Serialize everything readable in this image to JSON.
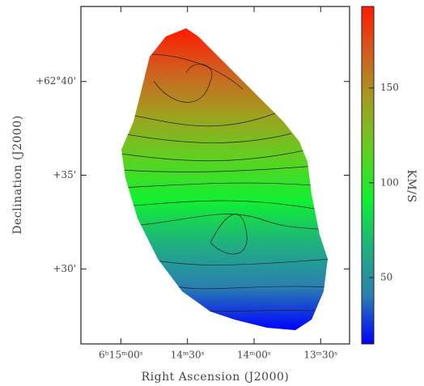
{
  "chart_data": {
    "type": "velocity-map",
    "xlabel": "Right Ascension (J2000)",
    "ylabel": "Declination (J2000)",
    "xlim": [
      918,
      797
    ],
    "xticks": [
      {
        "value": 900,
        "label": "6ʰ15ᵐ00ˢ"
      },
      {
        "value": 870,
        "label": "14ᵐ30ˢ"
      },
      {
        "value": 840,
        "label": "14ᵐ00ˢ"
      },
      {
        "value": 810,
        "label": "13ᵐ30ˢ"
      }
    ],
    "ylim": [
      26,
      44
    ],
    "yticks": [
      {
        "value": 40,
        "label": "+62°40'"
      },
      {
        "value": 35,
        "label": "+35'"
      },
      {
        "value": 30,
        "label": "+30'"
      }
    ],
    "colorbar": {
      "label": "KM/S",
      "lim": [
        15,
        193
      ],
      "ticks": [
        50,
        100,
        150
      ],
      "colors": [
        "#0000ff",
        "#2a7fb0",
        "#20b080",
        "#10f030",
        "#60d020",
        "#a0a020",
        "#d06020",
        "#ff1a00"
      ]
    }
  }
}
